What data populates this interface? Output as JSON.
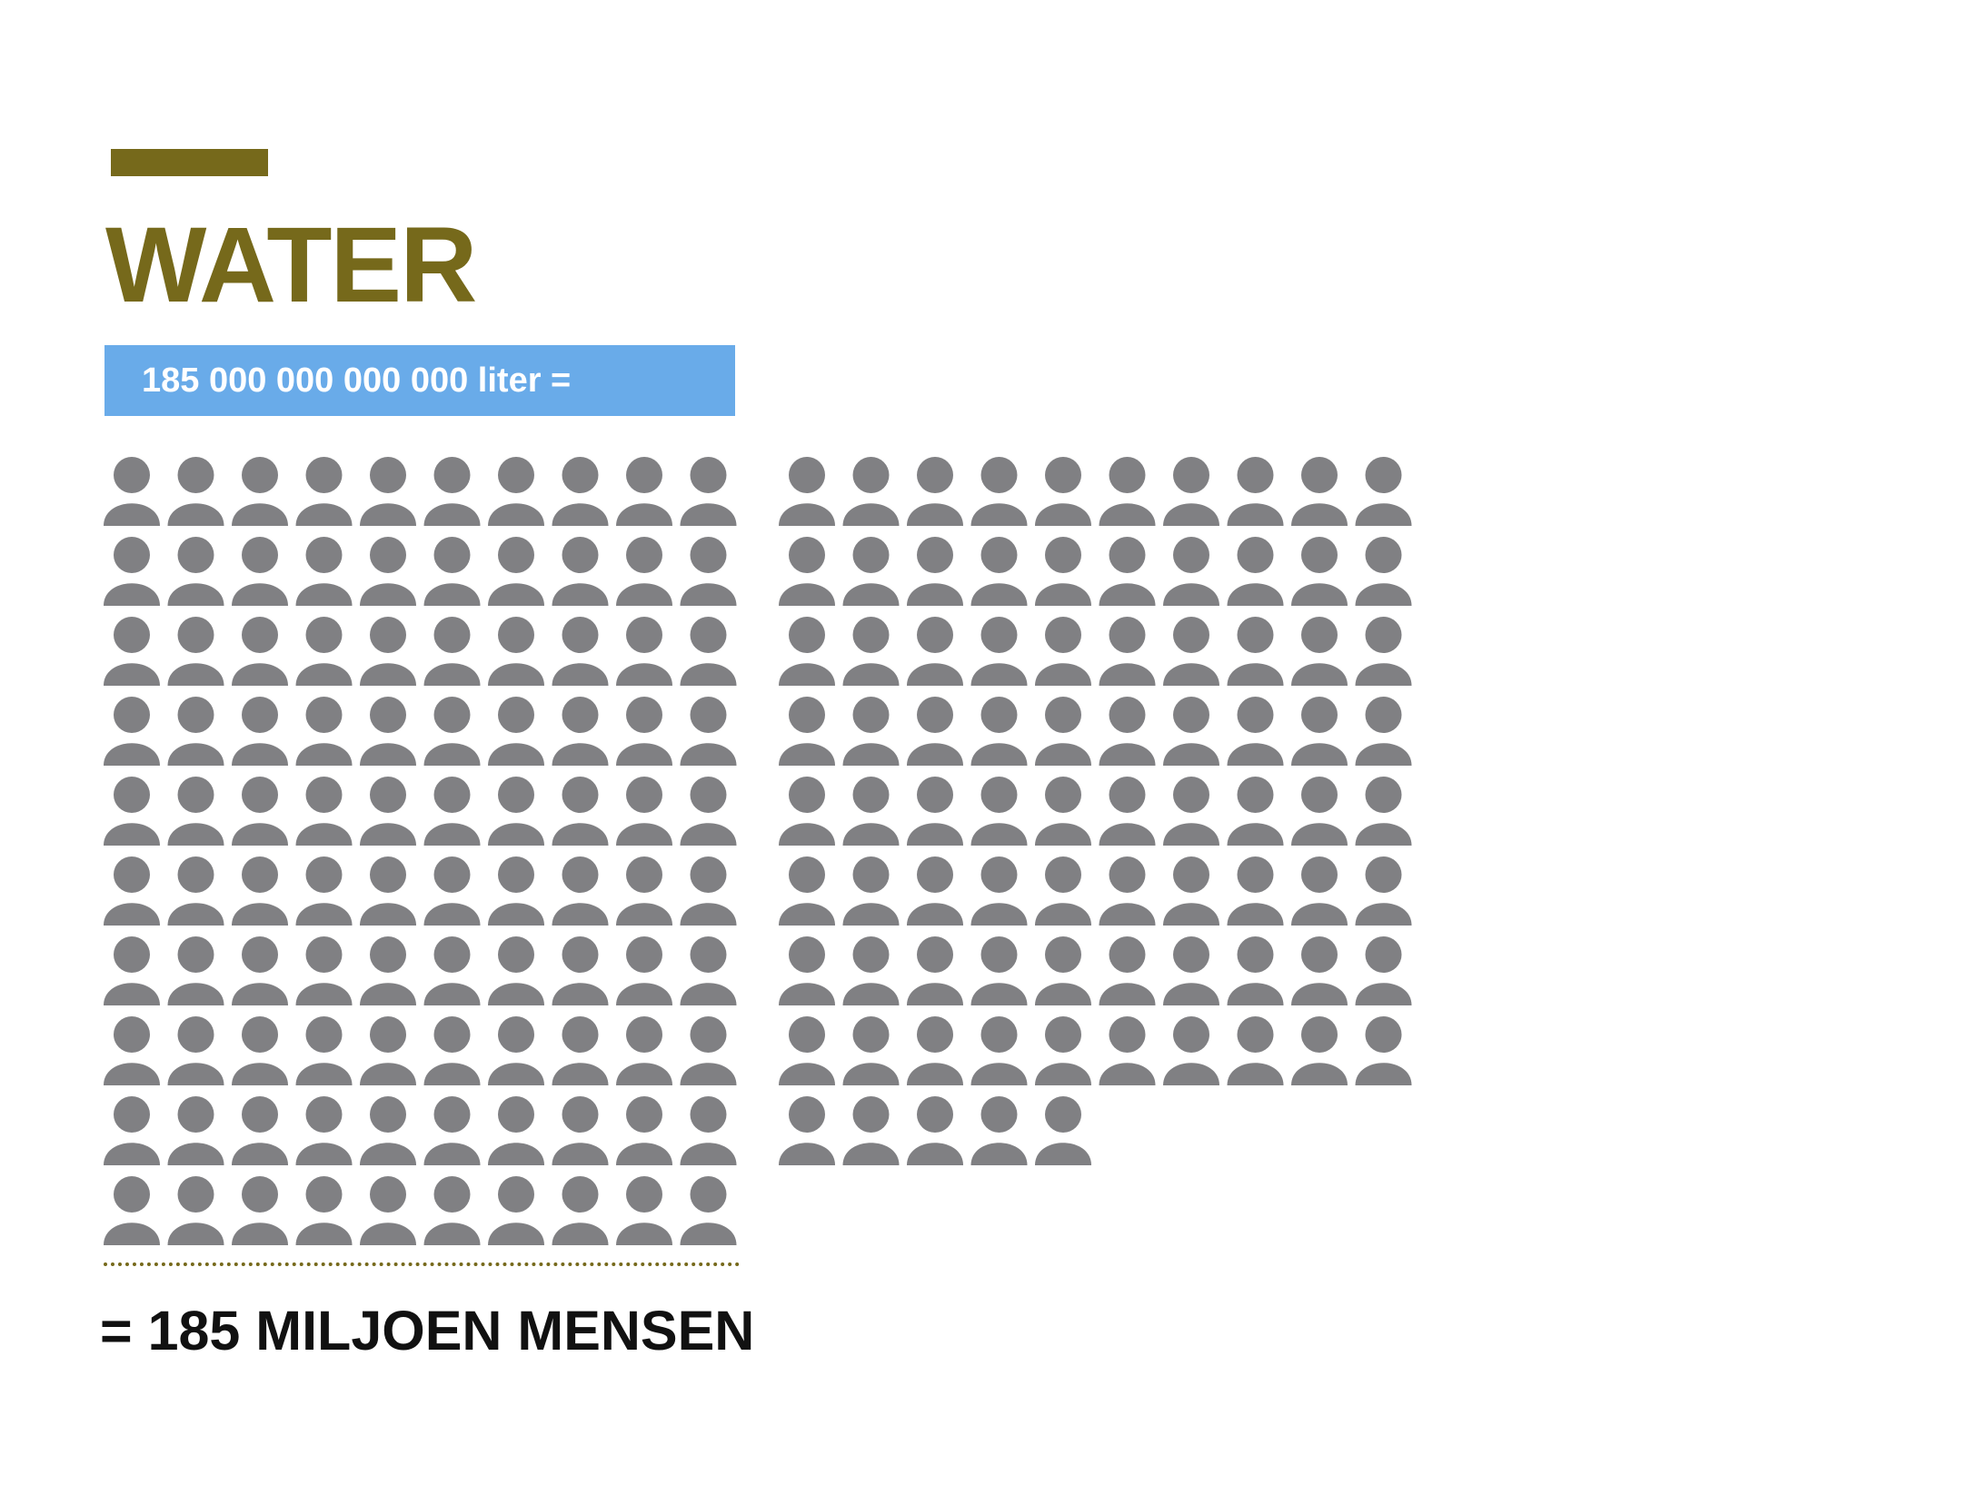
{
  "title": "WATER",
  "volume_label": "185 000 000 000 000 liter =",
  "result_label": "= 185 MILJOEN MENSEN",
  "colors": {
    "accent": "#76691b",
    "band": "#69abe9",
    "person": "#808083",
    "result_text": "#111111"
  },
  "icon": "person-icon",
  "groups": [
    {
      "rows": [
        10,
        10,
        10,
        10,
        10,
        10,
        10,
        10,
        10,
        10
      ],
      "count": 100
    },
    {
      "rows": [
        10,
        10,
        10,
        10,
        10,
        10,
        10,
        10,
        5
      ],
      "count": 85
    }
  ],
  "total_icons": 185
}
